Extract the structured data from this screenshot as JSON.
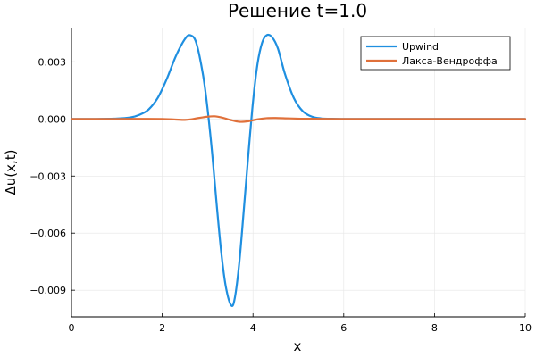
{
  "chart_data": {
    "type": "line",
    "title": "Решение t=1.0",
    "xlabel": "x",
    "ylabel": "Δu(x,t)",
    "xlim": [
      0,
      10
    ],
    "ylim": [
      -0.0104,
      0.0048
    ],
    "xticks": [
      0,
      2,
      4,
      6,
      8,
      10
    ],
    "xtick_labels": [
      "0",
      "2",
      "4",
      "6",
      "8",
      "10"
    ],
    "yticks": [
      0.003,
      0.0,
      -0.003,
      -0.006,
      -0.009
    ],
    "ytick_labels": [
      "0.003",
      "0.000",
      "−0.003",
      "−0.006",
      "−0.009"
    ],
    "grid": true,
    "legend_position": "top-right",
    "series": [
      {
        "name": "Upwind",
        "color": "#1f8fe0",
        "x": [
          0,
          0.5,
          1.0,
          1.3,
          1.5,
          1.7,
          1.9,
          2.1,
          2.3,
          2.5,
          2.62,
          2.75,
          2.9,
          3.0,
          3.1,
          3.2,
          3.3,
          3.4,
          3.52,
          3.6,
          3.7,
          3.8,
          3.9,
          4.0,
          4.1,
          4.2,
          4.3,
          4.42,
          4.55,
          4.7,
          4.9,
          5.1,
          5.3,
          5.5,
          5.7,
          6.0,
          7.0,
          8.0,
          9.0,
          10.0
        ],
        "values": [
          0,
          0,
          2e-05,
          8e-05,
          0.00022,
          0.0005,
          0.0011,
          0.0021,
          0.0033,
          0.0042,
          0.0044,
          0.004,
          0.0023,
          0.0005,
          -0.0018,
          -0.0045,
          -0.007,
          -0.0088,
          -0.0098,
          -0.0094,
          -0.0075,
          -0.0047,
          -0.0018,
          0.0009,
          0.0029,
          0.004,
          0.0044,
          0.0043,
          0.0037,
          0.0024,
          0.0011,
          0.0004,
          0.00012,
          3e-05,
          1e-05,
          0,
          0,
          0,
          0,
          0
        ]
      },
      {
        "name": "Лакса-Вендроффа",
        "color": "#e0703a",
        "x": [
          0,
          1.0,
          2.0,
          2.5,
          2.8,
          3.0,
          3.15,
          3.3,
          3.5,
          3.7,
          3.9,
          4.1,
          4.3,
          4.5,
          4.8,
          5.2,
          6.0,
          8.0,
          10.0
        ],
        "values": [
          0,
          0,
          0,
          -5e-05,
          5e-05,
          0.00012,
          0.00014,
          8e-05,
          -5e-05,
          -0.00015,
          -0.00012,
          -2e-05,
          4e-05,
          5e-05,
          3e-05,
          1e-05,
          0,
          0,
          0
        ]
      }
    ]
  }
}
